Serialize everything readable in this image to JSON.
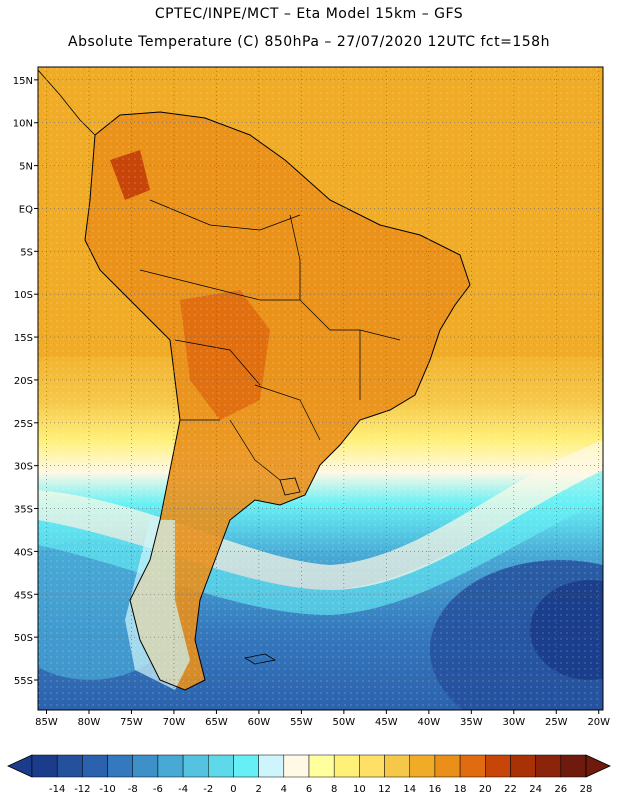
{
  "header": {
    "line1": "CPTEC/INPE/MCT –  Eta Model 15km – GFS",
    "line2": "Absolute Temperature (C) 850hPa – 27/07/2020 12UTC fct=158h"
  },
  "map": {
    "lat_labels": [
      "15N",
      "10N",
      "5N",
      "EQ",
      "5S",
      "10S",
      "15S",
      "20S",
      "25S",
      "30S",
      "35S",
      "40S",
      "45S",
      "50S",
      "55S"
    ],
    "lon_labels": [
      "85W",
      "80W",
      "75W",
      "70W",
      "65W",
      "60W",
      "55W",
      "50W",
      "45W",
      "40W",
      "35W",
      "30W",
      "25W",
      "20W"
    ],
    "lat_values": [
      15,
      10,
      5,
      0,
      -5,
      -10,
      -15,
      -20,
      -25,
      -30,
      -35,
      -40,
      -45,
      -50,
      -55
    ],
    "lon_values": [
      -85,
      -80,
      -75,
      -70,
      -65,
      -60,
      -55,
      -50,
      -45,
      -40,
      -35,
      -30,
      -25,
      -20
    ],
    "lat_range": [
      -58.5,
      16.5
    ],
    "lon_range": [
      -86,
      -19.5
    ]
  },
  "colorbar": {
    "labels": [
      "-14",
      "-12",
      "-10",
      "-8",
      "-6",
      "-4",
      "-2",
      "0",
      "2",
      "4",
      "6",
      "8",
      "10",
      "12",
      "14",
      "16",
      "18",
      "20",
      "22",
      "24",
      "26",
      "28"
    ],
    "colors": [
      "#1b3c8a",
      "#24509c",
      "#2c62ad",
      "#3478bd",
      "#3e90c9",
      "#49a9d5",
      "#55c2e0",
      "#5dd9ea",
      "#66f0f5",
      "#cdf5fb",
      "#fff9e6",
      "#ffff9e",
      "#fff07a",
      "#ffe066",
      "#f6c84a",
      "#f0ac26",
      "#e98f1a",
      "#e06b10",
      "#c8450a",
      "#a83206",
      "#8a240a",
      "#6e1a0c"
    ]
  }
}
